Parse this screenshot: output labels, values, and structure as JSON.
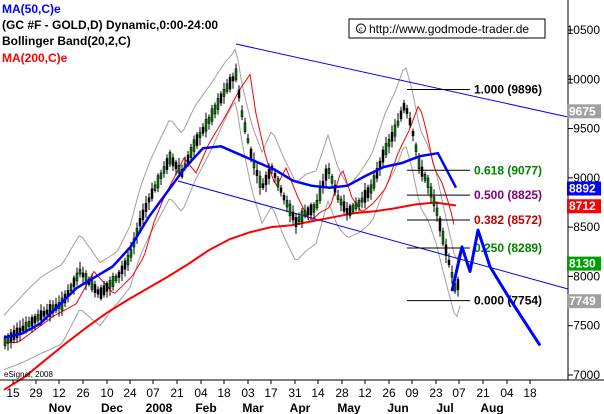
{
  "header": {
    "ma50_label": "MA(50,C)e",
    "instrument_label": "(GC #F - GOLD,D) Dynamic,0:00-24:00",
    "bollinger_label": "Bollinger Band(20,2,C)",
    "ma200_label": "MA(200,C)e"
  },
  "website": "http://www.godmode-trader.de",
  "copyright": "eSignal, 2008",
  "colors": {
    "ma50": "#0000ff",
    "ma200": "#ff0000",
    "bollinger": "#a0a0a0",
    "candle_up": "#008000",
    "candle_down": "#000000",
    "channel": "#0000ff",
    "fib_green": "#008000",
    "fib_purple": "#800080",
    "fib_red": "#c00000",
    "badge_blue": "#0000ff",
    "badge_red": "#ff0000",
    "badge_green": "#00a000",
    "badge_gray": "#a0a0a0"
  },
  "chart_data": {
    "type": "candlestick",
    "ylim": [
      6950,
      10700
    ],
    "y_ticks": [
      7000,
      7500,
      8000,
      8500,
      9000,
      9500,
      10000,
      10500
    ],
    "x_day_labels": [
      "15",
      "29",
      "12",
      "26",
      "10",
      "24",
      "07",
      "21",
      "04",
      "18",
      "03",
      "17",
      "31",
      "14",
      "28",
      "12",
      "26",
      "09",
      "23",
      "07",
      "21",
      "04",
      "18"
    ],
    "x_month_labels": [
      "Nov",
      "Dec",
      "2008",
      "Feb",
      "Mar",
      "Apr",
      "May",
      "Jun",
      "Jul",
      "Aug"
    ],
    "fibonacci_levels": [
      {
        "label": "1.000 (9896)",
        "value": 9896
      },
      {
        "label": "0.618 (9077)",
        "value": 9077
      },
      {
        "label": "0.500 (8825)",
        "value": 8825
      },
      {
        "label": "0.382 (8572)",
        "value": 8572
      },
      {
        "label": "0.250 (8289)",
        "value": 8289
      },
      {
        "label": "0.000 (7754)",
        "value": 7754
      }
    ],
    "price_badges": [
      {
        "label": "9675",
        "value": 9675
      },
      {
        "label": "8892",
        "value": 8892
      },
      {
        "label": "8712",
        "value": 8712
      },
      {
        "label": "8130",
        "value": 8130
      },
      {
        "label": "7749",
        "value": 7749
      }
    ],
    "series": [
      {
        "name": "MA(50,C)e",
        "values": [
          7380,
          7420,
          7520,
          7700,
          7880,
          7990,
          8100,
          8300,
          8600,
          8850,
          9100,
          9300,
          9320,
          9240,
          9160,
          9080,
          8970,
          8920,
          8900,
          8920,
          9020,
          9110,
          9150,
          9220,
          9250,
          8900
        ]
      },
      {
        "name": "MA(200,C)e",
        "values": [
          6850,
          6980,
          7150,
          7320,
          7480,
          7630,
          7760,
          7880,
          8000,
          8130,
          8270,
          8380,
          8450,
          8500,
          8520,
          8560,
          8600,
          8640,
          8660,
          8690,
          8730,
          8750,
          8720
        ]
      },
      {
        "name": "projection",
        "values": [
          8050,
          8470,
          8100,
          7300
        ]
      }
    ]
  }
}
